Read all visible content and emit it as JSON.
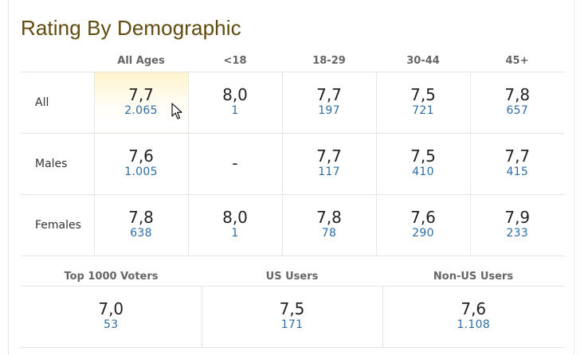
{
  "title": "Rating By Demographic",
  "columns": [
    "All Ages",
    "<18",
    "18-29",
    "30-44",
    "45+"
  ],
  "rows": [
    {
      "label": "All",
      "cells": [
        {
          "rating": "7,7",
          "votes": "2.065"
        },
        {
          "rating": "8,0",
          "votes": "1"
        },
        {
          "rating": "7,7",
          "votes": "197"
        },
        {
          "rating": "7,5",
          "votes": "721"
        },
        {
          "rating": "7,8",
          "votes": "657"
        }
      ]
    },
    {
      "label": "Males",
      "cells": [
        {
          "rating": "7,6",
          "votes": "1.005"
        },
        {
          "rating": "-",
          "votes": ""
        },
        {
          "rating": "7,7",
          "votes": "117"
        },
        {
          "rating": "7,5",
          "votes": "410"
        },
        {
          "rating": "7,7",
          "votes": "415"
        }
      ]
    },
    {
      "label": "Females",
      "cells": [
        {
          "rating": "7,8",
          "votes": "638"
        },
        {
          "rating": "8,0",
          "votes": "1"
        },
        {
          "rating": "7,8",
          "votes": "78"
        },
        {
          "rating": "7,6",
          "votes": "290"
        },
        {
          "rating": "7,9",
          "votes": "233"
        }
      ]
    }
  ],
  "extra_columns": [
    "Top 1000 Voters",
    "US Users",
    "Non-US Users"
  ],
  "extra_cells": [
    {
      "rating": "7,0",
      "votes": "53"
    },
    {
      "rating": "7,5",
      "votes": "171"
    },
    {
      "rating": "7,6",
      "votes": "1.108"
    }
  ],
  "colors": {
    "title": "#5f4a0f",
    "votes": "#2e6da4",
    "highlight": "#fff4cc"
  },
  "cursor_icon": "arrow-cursor-icon"
}
